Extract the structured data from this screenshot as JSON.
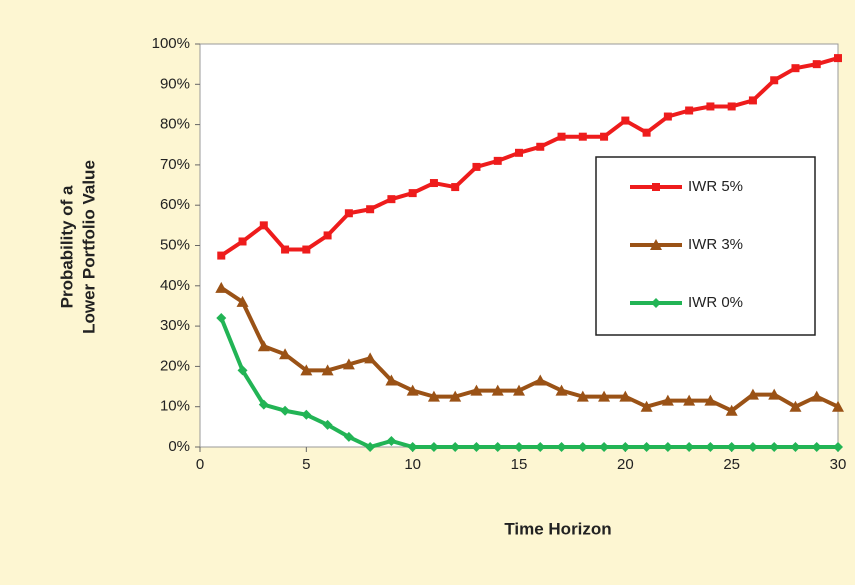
{
  "chart_data": {
    "type": "line",
    "x_label": "Time Horizon",
    "y_label": [
      "Probability of a",
      "Lower Portfolio Value"
    ],
    "x": [
      1,
      2,
      3,
      4,
      5,
      6,
      7,
      8,
      9,
      10,
      11,
      12,
      13,
      14,
      15,
      16,
      17,
      18,
      19,
      20,
      21,
      22,
      23,
      24,
      25,
      26,
      27,
      28,
      29,
      30
    ],
    "series": [
      {
        "name": "IWR 5%",
        "color": "#ee1c1c",
        "marker": "square",
        "values": [
          47.5,
          51,
          55,
          49,
          49,
          52.5,
          58,
          59,
          61.5,
          63,
          65.5,
          64.5,
          69.5,
          71,
          73,
          74.5,
          77,
          77,
          77,
          81,
          78,
          82,
          83.5,
          84.5,
          84.5,
          86,
          91,
          94,
          95,
          96.5
        ]
      },
      {
        "name": "IWR 3%",
        "color": "#9a5216",
        "marker": "triangle",
        "values": [
          39.5,
          36,
          25,
          23,
          19,
          19,
          20.5,
          22,
          16.5,
          14,
          12.5,
          12.5,
          14,
          14,
          14,
          16.5,
          14,
          12.5,
          12.5,
          12.5,
          10,
          11.5,
          11.5,
          11.5,
          9,
          13,
          13,
          10,
          12.5,
          10
        ]
      },
      {
        "name": "IWR 0%",
        "color": "#22b455",
        "marker": "diamond",
        "values": [
          32,
          19,
          10.5,
          9,
          8,
          5.5,
          2.5,
          0,
          1.5,
          0,
          0,
          0,
          0,
          0,
          0,
          0,
          0,
          0,
          0,
          0,
          0,
          0,
          0,
          0,
          0,
          0,
          0,
          0,
          0,
          0
        ]
      }
    ],
    "xlim": [
      0,
      30
    ],
    "xticks": [
      0,
      5,
      10,
      15,
      20,
      25,
      30
    ],
    "ylim": [
      0,
      100
    ],
    "yticks": [
      {
        "value": 0,
        "label": "0%"
      },
      {
        "value": 10,
        "label": "10%"
      },
      {
        "value": 20,
        "label": "20%"
      },
      {
        "value": 30,
        "label": "30%"
      },
      {
        "value": 40,
        "label": "40%"
      },
      {
        "value": 50,
        "label": "50%"
      },
      {
        "value": 60,
        "label": "60%"
      },
      {
        "value": 70,
        "label": "70%"
      },
      {
        "value": 80,
        "label": "80%"
      },
      {
        "value": 90,
        "label": "90%"
      },
      {
        "value": 100,
        "label": "100%"
      }
    ],
    "legend": "right"
  }
}
